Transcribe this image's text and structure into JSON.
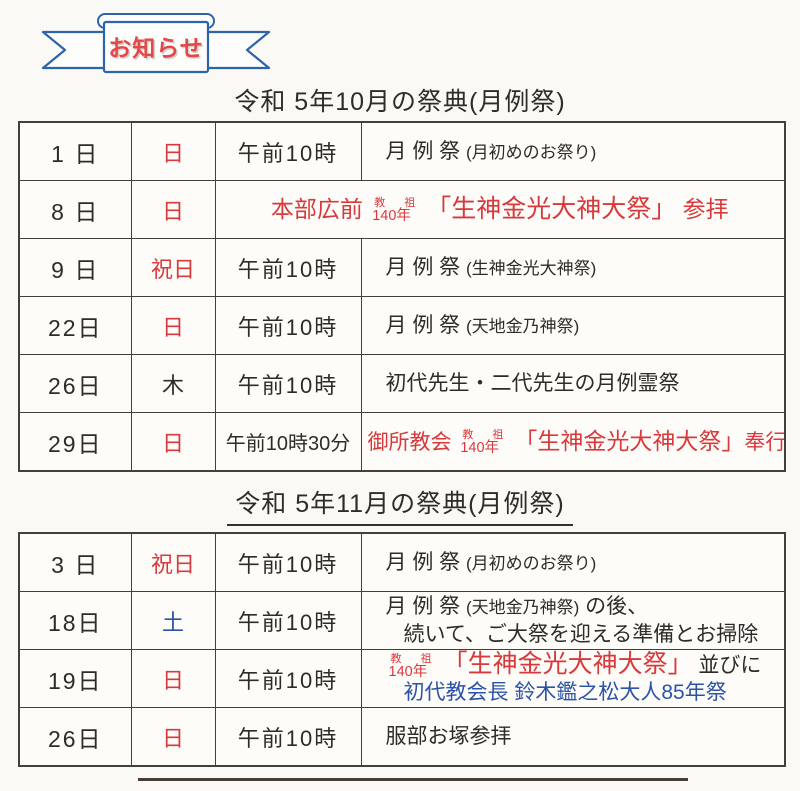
{
  "banner": {
    "label": "お知らせ"
  },
  "colors": {
    "red": "#d8393c",
    "blue": "#2b53a8",
    "black": "#2e2b28",
    "ribbon_blue": "#2e64aa",
    "banner_text_red": "#e34848",
    "table_border": "#43403c"
  },
  "tables": [
    {
      "title": "令和 5年10月の祭典(月例祭)",
      "rows": [
        {
          "day": "1 日",
          "weekday": "日",
          "wd_color": "r",
          "time": "午前10時",
          "desc": [
            {
              "parts": [
                {
                  "t": "月 例 祭 ",
                  "c": "k",
                  "s": "n"
                },
                {
                  "t": "(月初めのお祭り)",
                  "c": "k",
                  "s": "s"
                }
              ]
            }
          ]
        },
        {
          "day": "8 日",
          "weekday": "日",
          "wd_color": "r",
          "merged": true,
          "desc": [
            {
              "parts": [
                {
                  "t": "本部広前 ",
                  "c": "r",
                  "s": "m"
                },
                {
                  "stack": {
                    "top": "教 祖",
                    "bottom": "140年"
                  },
                  "c": "r"
                },
                {
                  "t": "「生神金光大神大祭」",
                  "c": "r",
                  "s": "l"
                },
                {
                  "t": " 参拝",
                  "c": "r",
                  "s": "m"
                }
              ]
            }
          ]
        },
        {
          "day": "9 日",
          "weekday": "祝日",
          "wd_color": "r",
          "time": "午前10時",
          "desc": [
            {
              "parts": [
                {
                  "t": "月 例 祭 ",
                  "c": "k",
                  "s": "n"
                },
                {
                  "t": "(生神金光大神祭)",
                  "c": "k",
                  "s": "s"
                }
              ]
            }
          ]
        },
        {
          "day": "22日",
          "weekday": "日",
          "wd_color": "r",
          "time": "午前10時",
          "desc": [
            {
              "parts": [
                {
                  "t": "月 例 祭 ",
                  "c": "k",
                  "s": "n"
                },
                {
                  "t": "(天地金乃神祭)",
                  "c": "k",
                  "s": "s"
                }
              ]
            }
          ]
        },
        {
          "day": "26日",
          "weekday": "木",
          "wd_color": "k",
          "time": "午前10時",
          "desc": [
            {
              "parts": [
                {
                  "t": "初代先生・二代先生の月例霊祭",
                  "c": "k",
                  "s": "n"
                }
              ]
            }
          ]
        },
        {
          "day": "29日",
          "weekday": "日",
          "wd_color": "r",
          "time": "午前10時30分",
          "tight": true,
          "desc": [
            {
              "parts": [
                {
                  "t": "御所教会 ",
                  "c": "r",
                  "s": "n"
                },
                {
                  "stack": {
                    "top": "教 祖",
                    "bottom": "140年"
                  },
                  "c": "r"
                },
                {
                  "t": "「生神金光大神大祭」",
                  "c": "r",
                  "s": "m"
                },
                {
                  "t": "奉行",
                  "c": "r",
                  "s": "n"
                }
              ]
            }
          ]
        }
      ]
    },
    {
      "title": "令和 5年11月の祭典(月例祭)",
      "rows": [
        {
          "day": "3 日",
          "weekday": "祝日",
          "wd_color": "r",
          "time": "午前10時",
          "desc": [
            {
              "parts": [
                {
                  "t": "月 例 祭 ",
                  "c": "k",
                  "s": "n"
                },
                {
                  "t": "(月初めのお祭り)",
                  "c": "k",
                  "s": "s"
                }
              ]
            }
          ]
        },
        {
          "day": "18日",
          "weekday": "土",
          "wd_color": "b",
          "time": "午前10時",
          "desc": [
            {
              "parts": [
                {
                  "t": "月 例 祭 ",
                  "c": "k",
                  "s": "n"
                },
                {
                  "t": "(天地金乃神祭)",
                  "c": "k",
                  "s": "s"
                },
                {
                  "t": " の後、",
                  "c": "k",
                  "s": "n"
                }
              ]
            },
            {
              "ind": true,
              "parts": [
                {
                  "t": "続いて、ご大祭を迎える準備とお掃除",
                  "c": "k",
                  "s": "n"
                }
              ]
            }
          ]
        },
        {
          "day": "19日",
          "weekday": "日",
          "wd_color": "r",
          "time": "午前10時",
          "desc": [
            {
              "parts": [
                {
                  "stack": {
                    "top": "教 祖",
                    "bottom": "140年"
                  },
                  "c": "r"
                },
                {
                  "t": "「生神金光大神大祭」",
                  "c": "r",
                  "s": "l"
                },
                {
                  "t": " 並びに",
                  "c": "k",
                  "s": "n"
                }
              ]
            },
            {
              "ind": true,
              "parts": [
                {
                  "t": "初代教会長 鈴木鑑之松大人85年祭",
                  "c": "b",
                  "s": "n"
                }
              ]
            }
          ]
        },
        {
          "day": "26日",
          "weekday": "日",
          "wd_color": "r",
          "time": "午前10時",
          "desc": [
            {
              "parts": [
                {
                  "t": "服部お塚参拝",
                  "c": "k",
                  "s": "n"
                }
              ]
            }
          ]
        }
      ]
    }
  ]
}
